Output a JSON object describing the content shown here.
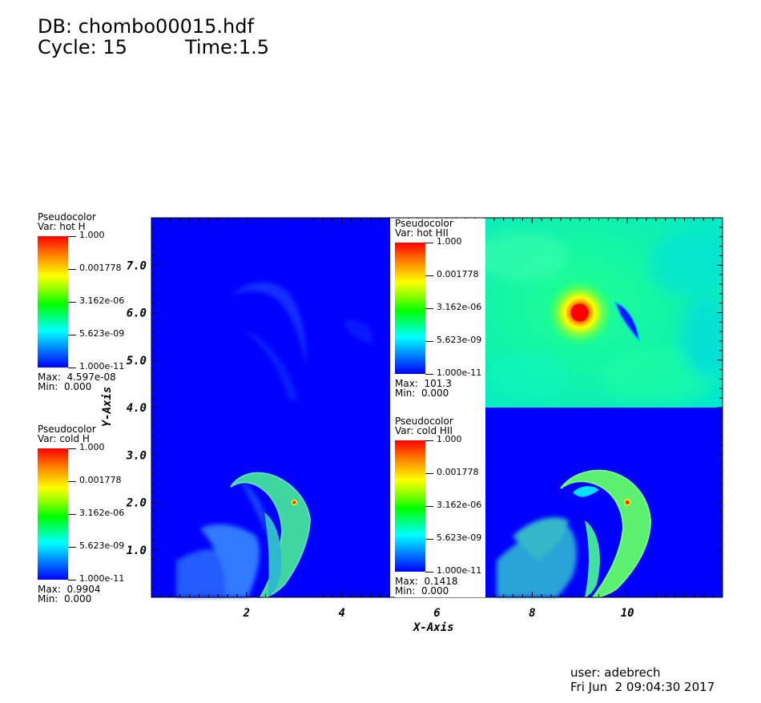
{
  "header": {
    "db": "DB: chombo00015.hdf",
    "cycle": "Cycle: 15",
    "time": "Time:1.5"
  },
  "legends": [
    {
      "title": "Pseudocolor",
      "var": "Var: hot H",
      "ticks": [
        "1.000",
        "0.001778",
        "3.162e-06",
        "5.623e-09",
        "1.000e-11"
      ],
      "max": "Max:  4.597e-08",
      "min": "Min:  0.000"
    },
    {
      "title": "Pseudocolor",
      "var": "Var: hot HII",
      "ticks": [
        "1.000",
        "0.001778",
        "3.162e-06",
        "5.623e-09",
        "1.000e-11"
      ],
      "max": "Max:  101.3",
      "min": "Min:  0.000"
    },
    {
      "title": "Pseudocolor",
      "var": "Var: cold H",
      "ticks": [
        "1.000",
        "0.001778",
        "3.162e-06",
        "5.623e-09",
        "1.000e-11"
      ],
      "max": "Max:  0.9904",
      "min": "Min:  0.000"
    },
    {
      "title": "Pseudocolor",
      "var": "Var: cold HII",
      "ticks": [
        "1.000",
        "0.001778",
        "3.162e-06",
        "5.623e-09",
        "1.000e-11"
      ],
      "max": "Max:  0.1418",
      "min": "Min:  0.000"
    }
  ],
  "chart_data": {
    "type": "heatmap",
    "colormap": [
      "#0000ff",
      "#00ffff",
      "#00ff00",
      "#ffff00",
      "#ff0000"
    ],
    "xlabel": "X-Axis",
    "ylabel": "Y-Axis",
    "xlim": [
      0,
      12
    ],
    "ylim": [
      0,
      8
    ],
    "x_ticks": [
      2,
      4,
      6,
      8,
      10
    ],
    "x_tick_labels": [
      "2",
      "4",
      "6",
      "8",
      "10"
    ],
    "y_ticks": [
      1,
      2,
      3,
      4,
      5,
      6,
      7
    ],
    "y_tick_labels": [
      "1.0",
      "2.0",
      "3.0",
      "4.0",
      "5.0",
      "6.0",
      "7.0"
    ],
    "panels": [
      {
        "var": "hot H",
        "x": [
          0,
          6
        ],
        "y": [
          4,
          8
        ]
      },
      {
        "var": "hot HII",
        "x": [
          6,
          12
        ],
        "y": [
          4,
          8
        ]
      },
      {
        "var": "cold H",
        "x": [
          0,
          6
        ],
        "y": [
          0,
          4
        ]
      },
      {
        "var": "cold HII",
        "x": [
          6,
          12
        ],
        "y": [
          0,
          4
        ]
      }
    ],
    "hot_star": {
      "x": 9.0,
      "y": 6.0
    },
    "cold_core_left": {
      "x": 3.0,
      "y": 2.0
    },
    "cold_core_right": {
      "x": 10.0,
      "y": 2.0
    }
  },
  "footer": {
    "user": "user: adebrech",
    "date": "Fri Jun  2 09:04:30 2017"
  }
}
